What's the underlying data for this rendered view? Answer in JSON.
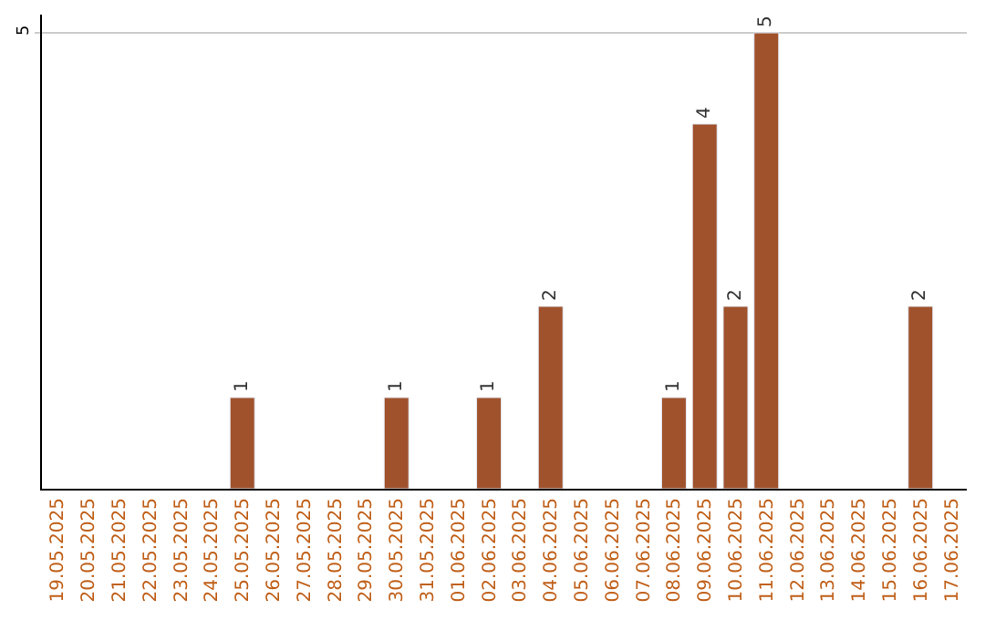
{
  "chart_data": {
    "type": "bar",
    "categories": [
      "19.05.2025",
      "20.05.2025",
      "21.05.2025",
      "22.05.2025",
      "23.05.2025",
      "24.05.2025",
      "25.05.2025",
      "26.05.2025",
      "27.05.2025",
      "28.05.2025",
      "29.05.2025",
      "30.05.2025",
      "31.05.2025",
      "01.06.2025",
      "02.06.2025",
      "03.06.2025",
      "04.06.2025",
      "05.06.2025",
      "06.06.2025",
      "07.06.2025",
      "08.06.2025",
      "09.06.2025",
      "10.06.2025",
      "11.06.2025",
      "12.06.2025",
      "13.06.2025",
      "14.06.2025",
      "15.06.2025",
      "16.06.2025",
      "17.06.2025"
    ],
    "values": [
      null,
      null,
      null,
      null,
      null,
      null,
      1,
      null,
      null,
      null,
      null,
      1,
      null,
      null,
      1,
      null,
      2,
      null,
      null,
      null,
      1,
      4,
      2,
      5,
      null,
      null,
      null,
      null,
      2,
      null
    ],
    "data_labels": true,
    "color": "#a0522d",
    "ylim": [
      0,
      5.2
    ],
    "yticks": [
      5
    ],
    "grid": "y"
  }
}
